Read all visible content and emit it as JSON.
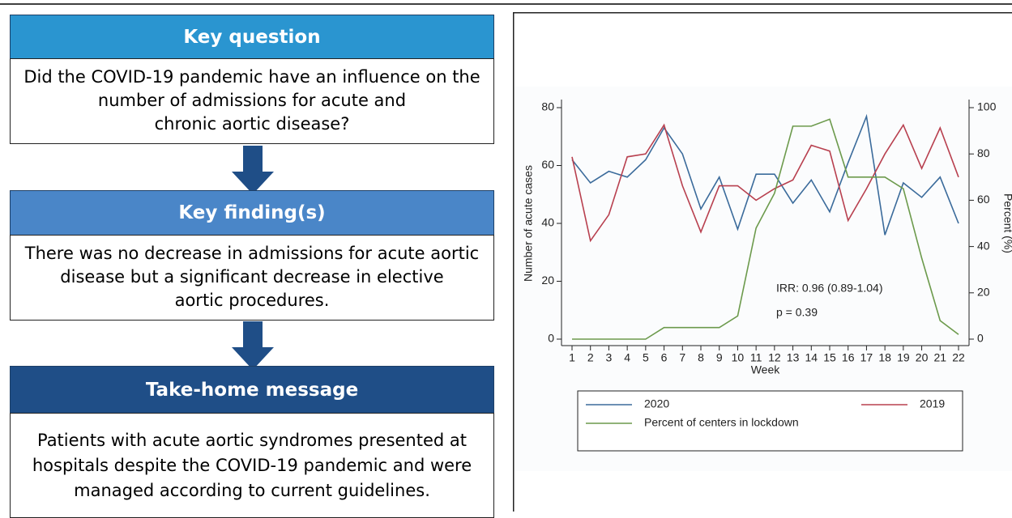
{
  "boxes": [
    {
      "header": "Key question",
      "lines": [
        "Did the COVID-19 pandemic have an influence on the",
        "number of admissions for acute and",
        "chronic aortic disease?"
      ]
    },
    {
      "header": "Key finding(s)",
      "lines": [
        "There was no decrease in admissions for acute aortic",
        "disease but a significant decrease in elective",
        "aortic procedures."
      ]
    },
    {
      "header": "Take-home message",
      "lines": [
        "Patients with acute aortic syndromes presented at",
        "hospitals despite the COVID-19 pandemic and were",
        "managed according to current guidelines."
      ]
    }
  ],
  "chart_data": {
    "type": "line",
    "xlabel": "Week",
    "ylabel": "Number of acute cases",
    "y2label": "Percent (%)",
    "categories": [
      "1",
      "2",
      "3",
      "4",
      "5",
      "6",
      "7",
      "8",
      "9",
      "10",
      "11",
      "12",
      "13",
      "14",
      "15",
      "16",
      "17",
      "18",
      "19",
      "20",
      "21",
      "22"
    ],
    "series": [
      {
        "name": "2020",
        "color": "#3b6b9b",
        "values": [
          62,
          54,
          58,
          56,
          62,
          73,
          64,
          45,
          56,
          38,
          57,
          57,
          47,
          55,
          44,
          61,
          77,
          36,
          54,
          49,
          56,
          40
        ]
      },
      {
        "name": "2019",
        "color": "#b8404f",
        "values": [
          63,
          34,
          43,
          63,
          64,
          74,
          53,
          37,
          53,
          53,
          48,
          52,
          55,
          67,
          65,
          41,
          52,
          64,
          74,
          59,
          73,
          56
        ]
      },
      {
        "name": "Percent of centers in lockdown",
        "color": "#6c9a4c",
        "axis": "y2",
        "values": [
          0,
          0,
          0,
          0,
          0,
          5,
          5,
          5,
          5,
          10,
          48,
          63,
          92,
          92,
          95,
          70,
          70,
          70,
          65,
          35,
          8,
          2
        ]
      }
    ],
    "ylim": [
      0,
      80
    ],
    "yticks": [
      0,
      20,
      40,
      60,
      80
    ],
    "y2lim": [
      0,
      100
    ],
    "y2ticks": [
      0,
      20,
      40,
      60,
      80,
      100
    ],
    "annotations": [
      "IRR: 0.96 (0.89-1.04)",
      "p = 0.39"
    ]
  }
}
